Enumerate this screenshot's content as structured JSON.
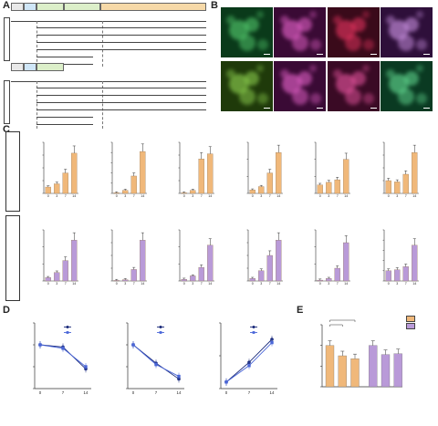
{
  "panels": {
    "A": "A",
    "B": "B",
    "C": "C",
    "D": "D",
    "E": "E"
  },
  "panel_a": {
    "top": {
      "label": "Ventral midbrain",
      "timeline": [
        {
          "text": "EB\nmedium"
        },
        {
          "text": "N2B27\nmedium"
        },
        {
          "text": "N2 medium"
        },
        {
          "text": "N2 medium"
        },
        {
          "text": "DMEM F12 Neurobasal medium"
        }
      ],
      "day_marks": [
        "-2",
        "0",
        "3",
        "5",
        "7",
        "9",
        "14"
      ],
      "left_marks": [
        "2i",
        "LIF"
      ],
      "conditions_left": [
        "LDN (200 nM)",
        "SHH (200 ng/ml)",
        "PM (2 μM)",
        "FGF8 (25 ng/ml)",
        "CHIR (0.3 μM)",
        "FGF2 (20 ng/ml)"
      ],
      "conditions_right": [
        "BDNF (30 ng/ml)",
        "GDNF (30 ng/ml)",
        "Asorbic acid (0.2 μM)",
        "DAPT (10 μM)"
      ]
    },
    "bottom": {
      "label": "Hindbrain",
      "conditions_left": [
        "LDN (200 nM)",
        "SHH (200 ng/ml)",
        "PM (2 μM)",
        "FGF8 (25 ng/ml)",
        "CHIR (1.5 μM)",
        "FGF2 (25 ng/ml)"
      ],
      "conditions_right": [
        "BDNF (30 ng/ml)",
        "GDNF (30 ng/ml)",
        "Asorbic acid (0.2 μM)",
        "DAPT (10 μM)"
      ]
    }
  },
  "panel_b": {
    "rows": [
      {
        "label": "Ventral midbrain",
        "tiles": [
          {
            "name": "Nestin",
            "color": "#5fe07a",
            "bg": "#0a3a1a"
          },
          {
            "name": "Foxa2",
            "color": "#ff6fe0",
            "bg": "#3a0a35"
          },
          {
            "name": "Lmx1a",
            "color": "#ff3a6a",
            "bg": "#3a0a1a"
          },
          {
            "name": "Ddc1/2",
            "color": "#e6a8ff",
            "bg": "#2e0f3a"
          }
        ]
      },
      {
        "label": "Hindbrain",
        "tiles": [
          {
            "name": "Nestin",
            "color": "#9fe85a",
            "bg": "#1f3a0a"
          },
          {
            "name": "Foxa2",
            "color": "#ff6fe0",
            "bg": "#3a0a35"
          },
          {
            "name": "Zic1",
            "color": "#ff5fb0",
            "bg": "#3a0a25"
          },
          {
            "name": "Th",
            "color": "#6ff0a0",
            "bg": "#0a3a22"
          }
        ]
      }
    ]
  },
  "panel_c": {
    "row_labels": [
      "midbrain",
      "hindbrain"
    ],
    "xlabel": "Days",
    "charts": [
      {
        "title": "Nestin",
        "ylabel": "mRNA expression of Nestin",
        "ymax": 8,
        "ticks": [
          "0",
          "2",
          "4",
          "6",
          "8"
        ],
        "values": [
          1,
          1.5,
          3.2,
          6.3
        ],
        "stars": [
          "",
          "",
          "**",
          "***"
        ],
        "color": "#f0b87a"
      },
      {
        "title": "Foxa2",
        "ylabel": "mRNA expression of Foxa2",
        "ymax": 250,
        "ticks": [
          "0",
          "50",
          "100",
          "150",
          "200",
          "250"
        ],
        "values": [
          1,
          15,
          85,
          205
        ],
        "stars": [
          "",
          "**",
          "***",
          "***"
        ],
        "color": "#f0b87a"
      },
      {
        "title": "Lmx1a",
        "ylabel": "mRNA expression of Lmx1a",
        "ymax": 200,
        "ticks": [
          "0",
          "50",
          "100",
          "150",
          "200"
        ],
        "values": [
          1,
          12,
          135,
          155
        ],
        "stars": [
          "",
          "**",
          "***",
          "***"
        ],
        "color": "#f0b87a"
      },
      {
        "title": "Otx2",
        "ylabel": "mRNA expression of Otx2",
        "ymax": 15,
        "ticks": [
          "0",
          "5",
          "10",
          "15"
        ],
        "values": [
          1,
          2,
          6,
          12
        ],
        "stars": [
          "",
          "**",
          "***",
          "***"
        ],
        "color": "#f0b87a"
      },
      {
        "title": "Nurr1",
        "ylabel": "mRNA expression of Nurr1",
        "ymax": 6,
        "ticks": [
          "0",
          "2",
          "4",
          "6"
        ],
        "values": [
          1,
          1.3,
          1.6,
          4
        ],
        "stars": [
          "",
          "",
          "",
          "**"
        ],
        "color": "#f0b87a"
      },
      {
        "title": "Th",
        "ylabel": "mRNA expression of Th",
        "ymax": 4,
        "ticks": [
          "0",
          "1",
          "2",
          "3",
          "4"
        ],
        "values": [
          1,
          0.9,
          1.5,
          3.2
        ],
        "stars": [
          "",
          "",
          "",
          "**"
        ],
        "color": "#f0b87a"
      },
      {
        "title": "Nestin",
        "ylabel": "mRNA expression of Nestin",
        "ymax": 15,
        "ticks": [
          "0",
          "5",
          "10",
          "15"
        ],
        "values": [
          1,
          2.5,
          6,
          12
        ],
        "stars": [
          "",
          "",
          "**",
          "***"
        ],
        "color": "#b99ad8"
      },
      {
        "title": "Foxa2",
        "ylabel": "mRNA expression of Foxa2",
        "ymax": 200,
        "ticks": [
          "0",
          "50",
          "100",
          "150",
          "200"
        ],
        "values": [
          1,
          5,
          45,
          160
        ],
        "stars": [
          "",
          "",
          "***",
          "***"
        ],
        "color": "#b99ad8"
      },
      {
        "title": "Tubb3",
        "ylabel": "mRNA expression of Tubb3",
        "ymax": 30,
        "ticks": [
          "0",
          "10",
          "20",
          "30"
        ],
        "values": [
          1,
          3,
          8,
          21
        ],
        "stars": [
          "",
          "",
          "*",
          "***"
        ],
        "color": "#b99ad8"
      },
      {
        "title": "Hoxa1",
        "ylabel": "mRNA expression of Hoxa1",
        "ymax": 20,
        "ticks": [
          "0",
          "5",
          "10",
          "15",
          "20"
        ],
        "values": [
          1,
          4,
          10,
          16
        ],
        "stars": [
          "",
          "*",
          "**",
          "***"
        ],
        "color": "#b99ad8"
      },
      {
        "title": "Zic1",
        "ylabel": "mRNA expression of Zic1",
        "ymax": 60,
        "ticks": [
          "0",
          "20",
          "40",
          "60"
        ],
        "values": [
          1,
          3,
          15,
          45
        ],
        "stars": [
          "",
          "",
          "**",
          "***"
        ],
        "color": "#b99ad8"
      },
      {
        "title": "Tph1",
        "ylabel": "mRNA expression of Tph1",
        "ymax": 5,
        "ticks": [
          "0",
          "1",
          "2",
          "3",
          "4",
          "5"
        ],
        "values": [
          1,
          1.1,
          1.4,
          3.5
        ],
        "stars": [
          "",
          "",
          "",
          "***"
        ],
        "color": "#b99ad8"
      }
    ]
  },
  "panel_d": {
    "xlabel": "Days",
    "series_names": [
      "mESC_MB",
      "mESC_HB"
    ],
    "charts": [
      {
        "ylabel": "Relative expression of Tet1",
        "ymax": 1.5,
        "ticks": [
          "0.0",
          "0.5",
          "1.0",
          "1.5"
        ],
        "x": [
          0,
          7,
          14
        ],
        "series": [
          [
            1.0,
            0.95,
            0.45
          ],
          [
            1.0,
            0.92,
            0.5
          ]
        ],
        "stars": [
          "",
          "",
          "###\n***"
        ]
      },
      {
        "ylabel": "Relative expression of Tet2",
        "ymax": 1.5,
        "ticks": [
          "0.0",
          "0.5",
          "1.0",
          "1.5"
        ],
        "x": [
          0,
          7,
          14
        ],
        "series": [
          [
            1.0,
            0.58,
            0.22
          ],
          [
            1.0,
            0.55,
            0.28
          ]
        ],
        "stars": [
          "",
          "##\n**",
          "###\n***"
        ]
      },
      {
        "ylabel": "Relative expression of Tet3",
        "ymax": 10,
        "ticks": [
          "0",
          "5",
          "10"
        ],
        "x": [
          0,
          7,
          14
        ],
        "series": [
          [
            1.0,
            4.0,
            7.5
          ],
          [
            1.0,
            3.5,
            7.0
          ]
        ],
        "stars": [
          "",
          "##\n**",
          "###\n***"
        ]
      }
    ]
  },
  "panel_e": {
    "ylabel": "Relative levels of 5hmC & 5mC",
    "legend": [
      "5mC",
      "5hmC"
    ],
    "colors": [
      "#f0b87a",
      "#b99ad8"
    ],
    "categories": [
      "mESC",
      "midbrain_NP",
      "hindbrain_NP",
      "mESC",
      "midbrain_NP",
      "hindbrain_NP"
    ],
    "values_5mC": [
      1.0,
      0.75,
      0.68
    ],
    "values_5hmC": [
      1.0,
      0.78,
      0.8
    ],
    "ticks": [
      "0.0",
      "0.5",
      "1.0",
      "1.5"
    ],
    "ymax": 1.5,
    "stars": [
      "*",
      "*"
    ]
  },
  "chart_data": [
    {
      "type": "bar",
      "title": "Nestin",
      "categories": [
        "0",
        "3",
        "7",
        "14"
      ],
      "values": [
        1,
        1.5,
        3.2,
        6.3
      ],
      "xlabel": "Days",
      "ylabel": "mRNA expression of Nestin",
      "ylim": [
        0,
        8
      ]
    },
    {
      "type": "bar",
      "title": "Foxa2",
      "categories": [
        "0",
        "3",
        "7",
        "14"
      ],
      "values": [
        1,
        15,
        85,
        205
      ],
      "xlabel": "Days",
      "ylabel": "mRNA expression of Foxa2",
      "ylim": [
        0,
        250
      ]
    },
    {
      "type": "bar",
      "title": "Lmx1a",
      "categories": [
        "0",
        "3",
        "7",
        "14"
      ],
      "values": [
        1,
        12,
        135,
        155
      ],
      "xlabel": "Days",
      "ylabel": "mRNA expression of Lmx1a",
      "ylim": [
        0,
        200
      ]
    },
    {
      "type": "bar",
      "title": "Otx2",
      "categories": [
        "0",
        "3",
        "7",
        "14"
      ],
      "values": [
        1,
        2,
        6,
        12
      ],
      "xlabel": "Days",
      "ylabel": "mRNA expression of Otx2",
      "ylim": [
        0,
        15
      ]
    },
    {
      "type": "bar",
      "title": "Nurr1",
      "categories": [
        "0",
        "3",
        "7",
        "14"
      ],
      "values": [
        1,
        1.3,
        1.6,
        4
      ],
      "xlabel": "Days",
      "ylabel": "mRNA expression of Nurr1",
      "ylim": [
        0,
        6
      ]
    },
    {
      "type": "bar",
      "title": "Th",
      "categories": [
        "0",
        "3",
        "7",
        "14"
      ],
      "values": [
        1,
        0.9,
        1.5,
        3.2
      ],
      "xlabel": "Days",
      "ylabel": "mRNA expression of Th",
      "ylim": [
        0,
        4
      ]
    },
    {
      "type": "bar",
      "title": "Nestin",
      "categories": [
        "0",
        "3",
        "7",
        "14"
      ],
      "values": [
        1,
        2.5,
        6,
        12
      ],
      "xlabel": "Days",
      "ylabel": "mRNA expression of Nestin",
      "ylim": [
        0,
        15
      ]
    },
    {
      "type": "bar",
      "title": "Foxa2",
      "categories": [
        "0",
        "3",
        "7",
        "14"
      ],
      "values": [
        1,
        5,
        45,
        160
      ],
      "xlabel": "Days",
      "ylabel": "mRNA expression of Foxa2",
      "ylim": [
        0,
        200
      ]
    },
    {
      "type": "bar",
      "title": "Tubb3",
      "categories": [
        "0",
        "3",
        "7",
        "14"
      ],
      "values": [
        1,
        3,
        8,
        21
      ],
      "xlabel": "Days",
      "ylabel": "mRNA expression of Tubb3",
      "ylim": [
        0,
        30
      ]
    },
    {
      "type": "bar",
      "title": "Hoxa1",
      "categories": [
        "0",
        "3",
        "7",
        "14"
      ],
      "values": [
        1,
        4,
        10,
        16
      ],
      "xlabel": "Days",
      "ylabel": "mRNA expression of Hoxa1",
      "ylim": [
        0,
        20
      ]
    },
    {
      "type": "bar",
      "title": "Zic1",
      "categories": [
        "0",
        "3",
        "7",
        "14"
      ],
      "values": [
        1,
        3,
        15,
        45
      ],
      "xlabel": "Days",
      "ylabel": "mRNA expression of Zic1",
      "ylim": [
        0,
        60
      ]
    },
    {
      "type": "bar",
      "title": "Tph1",
      "categories": [
        "0",
        "3",
        "7",
        "14"
      ],
      "values": [
        1,
        1.1,
        1.4,
        3.5
      ],
      "xlabel": "Days",
      "ylabel": "mRNA expression of Tph1",
      "ylim": [
        0,
        5
      ]
    },
    {
      "type": "line",
      "x": [
        0,
        7,
        14
      ],
      "series": [
        {
          "name": "mESC_MB",
          "values": [
            1.0,
            0.95,
            0.45
          ]
        },
        {
          "name": "mESC_HB",
          "values": [
            1.0,
            0.92,
            0.5
          ]
        }
      ],
      "xlabel": "Days",
      "ylabel": "Relative expression of Tet1",
      "ylim": [
        0,
        1.5
      ]
    },
    {
      "type": "line",
      "x": [
        0,
        7,
        14
      ],
      "series": [
        {
          "name": "mESC_MB",
          "values": [
            1.0,
            0.58,
            0.22
          ]
        },
        {
          "name": "mESC_HB",
          "values": [
            1.0,
            0.55,
            0.28
          ]
        }
      ],
      "xlabel": "Days",
      "ylabel": "Relative expression of Tet2",
      "ylim": [
        0,
        1.5
      ]
    },
    {
      "type": "line",
      "x": [
        0,
        7,
        14
      ],
      "series": [
        {
          "name": "mESC_MB",
          "values": [
            1.0,
            4.0,
            7.5
          ]
        },
        {
          "name": "mESC_HB",
          "values": [
            1.0,
            3.5,
            7.0
          ]
        }
      ],
      "xlabel": "Days",
      "ylabel": "Relative expression of Tet3",
      "ylim": [
        0,
        10
      ]
    },
    {
      "type": "bar",
      "categories": [
        "mESC",
        "midbrain_NP",
        "hindbrain_NP"
      ],
      "series": [
        {
          "name": "5mC",
          "values": [
            1.0,
            0.75,
            0.68
          ]
        },
        {
          "name": "5hmC",
          "values": [
            1.0,
            0.78,
            0.8
          ]
        }
      ],
      "ylabel": "Relative levels of 5hmC & 5mC",
      "ylim": [
        0,
        1.5
      ]
    }
  ]
}
